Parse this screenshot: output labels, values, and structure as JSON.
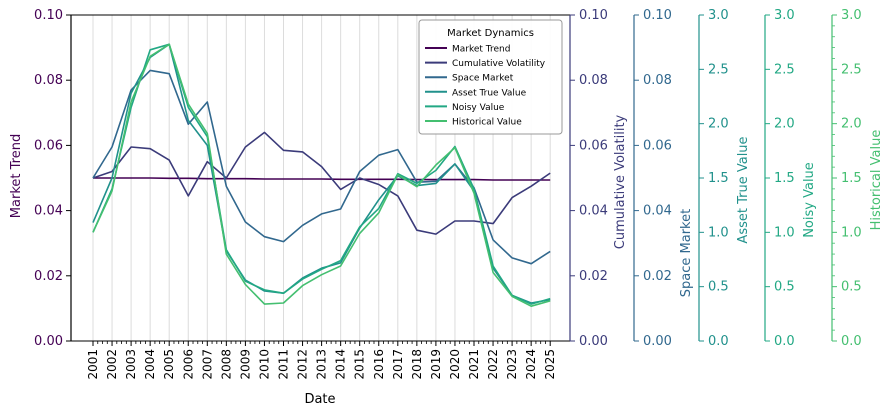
{
  "chart_data": {
    "type": "line",
    "xlabel": "Date",
    "x": [
      "2001",
      "2002",
      "2003",
      "2004",
      "2005",
      "2006",
      "2007",
      "2008",
      "2009",
      "2010",
      "2011",
      "2012",
      "2013",
      "2014",
      "2015",
      "2016",
      "2017",
      "2018",
      "2019",
      "2020",
      "2021",
      "2022",
      "2023",
      "2024",
      "2025"
    ],
    "legend": {
      "title": "Market Dynamics",
      "position": "upper-right"
    },
    "grid": "vertical",
    "axes": [
      {
        "id": "market",
        "label": "Market Trend",
        "color": "#440154",
        "range": [
          0,
          0.1
        ],
        "ticks": [
          "0.00",
          "0.02",
          "0.04",
          "0.06",
          "0.08",
          "0.10"
        ]
      },
      {
        "id": "vol",
        "label": "Cumulative Volatility",
        "color": "#3b3b7a",
        "range": [
          0,
          0.1
        ],
        "ticks": [
          "0.00",
          "0.02",
          "0.04",
          "0.06",
          "0.08",
          "0.10"
        ]
      },
      {
        "id": "space",
        "label": "Space Market",
        "color": "#31688e",
        "range": [
          0,
          0.1
        ],
        "ticks": [
          "0.00",
          "0.02",
          "0.04",
          "0.06",
          "0.08",
          "0.10"
        ]
      },
      {
        "id": "asset",
        "label": "Asset True Value",
        "color": "#21918c",
        "range": [
          0,
          3.0
        ],
        "ticks": [
          "0.0",
          "0.5",
          "1.0",
          "1.5",
          "2.0",
          "2.5",
          "3.0"
        ]
      },
      {
        "id": "noisy",
        "label": "Noisy Value",
        "color": "#22a884",
        "range": [
          0,
          3.0
        ],
        "ticks": [
          "0.0",
          "0.5",
          "1.0",
          "1.5",
          "2.0",
          "2.5",
          "3.0"
        ]
      },
      {
        "id": "hist",
        "label": "Historical Value",
        "color": "#44bf70",
        "range": [
          0,
          3.0
        ],
        "ticks": [
          "0.0",
          "0.5",
          "1.0",
          "1.5",
          "2.0",
          "2.5",
          "3.0"
        ]
      }
    ],
    "series": [
      {
        "name": "Market Trend",
        "axis": "market",
        "color": "#440154",
        "values": [
          0.05,
          0.05,
          0.05,
          0.05,
          0.0499,
          0.0499,
          0.0498,
          0.0498,
          0.0498,
          0.0497,
          0.0497,
          0.0497,
          0.0497,
          0.0496,
          0.0496,
          0.0496,
          0.0496,
          0.0495,
          0.0495,
          0.0495,
          0.0495,
          0.0494,
          0.0494,
          0.0494,
          0.0494
        ]
      },
      {
        "name": "Cumulative Volatility",
        "axis": "vol",
        "color": "#3b3b7a",
        "values": [
          0.05,
          0.052,
          0.0595,
          0.059,
          0.0555,
          0.0445,
          0.055,
          0.05,
          0.0595,
          0.064,
          0.0585,
          0.058,
          0.0535,
          0.0465,
          0.05,
          0.048,
          0.0445,
          0.034,
          0.0328,
          0.0368,
          0.0368,
          0.036,
          0.044,
          0.0475,
          0.0515
        ]
      },
      {
        "name": "Space Market",
        "axis": "space",
        "color": "#31688e",
        "values": [
          0.05,
          0.0595,
          0.077,
          0.083,
          0.082,
          0.0665,
          0.0733,
          0.0475,
          0.0365,
          0.032,
          0.0305,
          0.0355,
          0.039,
          0.0405,
          0.052,
          0.057,
          0.0587,
          0.0487,
          0.049,
          0.0543,
          0.047,
          0.031,
          0.0255,
          0.0237,
          0.0275
        ]
      },
      {
        "name": "Asset True Value",
        "axis": "asset",
        "color": "#21918c",
        "values": [
          1.09,
          1.5,
          2.28,
          2.61,
          2.73,
          2.03,
          1.8,
          0.83,
          0.56,
          0.46,
          0.44,
          0.58,
          0.67,
          0.72,
          1.04,
          1.3,
          1.52,
          1.43,
          1.45,
          1.63,
          1.38,
          0.67,
          0.42,
          0.35,
          0.38
        ]
      },
      {
        "name": "Noisy Value",
        "axis": "noisy",
        "color": "#22a884",
        "values": [
          1.0,
          1.4,
          2.15,
          2.68,
          2.73,
          2.15,
          1.88,
          0.84,
          0.55,
          0.47,
          0.44,
          0.57,
          0.66,
          0.74,
          1.05,
          1.22,
          1.54,
          1.45,
          1.57,
          1.79,
          1.4,
          0.69,
          0.42,
          0.34,
          0.39
        ]
      },
      {
        "name": "Historical Value",
        "axis": "hist",
        "color": "#44bf70",
        "values": [
          1.0,
          1.38,
          2.2,
          2.62,
          2.73,
          2.18,
          1.91,
          0.8,
          0.52,
          0.34,
          0.35,
          0.51,
          0.61,
          0.69,
          0.99,
          1.18,
          1.53,
          1.42,
          1.62,
          1.78,
          1.36,
          0.63,
          0.41,
          0.32,
          0.37
        ]
      }
    ]
  }
}
